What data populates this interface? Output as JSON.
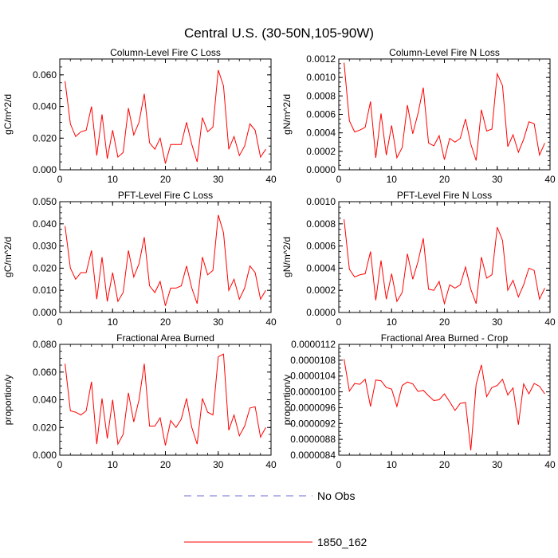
{
  "title": "Central U.S. (30-50N,105-90W)",
  "colors": {
    "series": "#ff0000",
    "obs": "#6b6bd6",
    "axis": "#000000"
  },
  "legend": {
    "items": [
      {
        "label": "No Obs",
        "style": "dashed"
      },
      {
        "label": "1850_162",
        "style": "solid"
      }
    ]
  },
  "chart_data": [
    {
      "type": "line",
      "title": "Column-Level Fire C Loss",
      "ylabel": "gC/m^2/d",
      "xlabel": "",
      "xlim": [
        0,
        40
      ],
      "ylim": [
        0,
        0.07
      ],
      "xticks": [
        0,
        10,
        20,
        30,
        40
      ],
      "xtick_labels": [
        "0",
        "10",
        "20",
        "30",
        "40"
      ],
      "yticks": [
        0,
        0.02,
        0.04,
        0.06
      ],
      "ytick_labels": [
        "0.000",
        "0.020",
        "0.040",
        "0.060"
      ],
      "series": [
        {
          "name": "1850_162",
          "x": [
            1,
            2,
            3,
            4,
            5,
            6,
            7,
            8,
            9,
            10,
            11,
            12,
            13,
            14,
            15,
            16,
            17,
            18,
            19,
            20,
            21,
            22,
            23,
            24,
            25,
            26,
            27,
            28,
            29,
            30,
            31,
            32,
            33,
            34,
            35,
            36,
            37,
            38,
            39
          ],
          "values": [
            0.056,
            0.029,
            0.021,
            0.024,
            0.025,
            0.04,
            0.009,
            0.035,
            0.007,
            0.025,
            0.008,
            0.011,
            0.039,
            0.022,
            0.03,
            0.048,
            0.017,
            0.013,
            0.02,
            0.004,
            0.016,
            0.016,
            0.016,
            0.03,
            0.016,
            0.005,
            0.033,
            0.024,
            0.027,
            0.063,
            0.053,
            0.013,
            0.021,
            0.009,
            0.015,
            0.029,
            0.025,
            0.008,
            0.013
          ]
        }
      ]
    },
    {
      "type": "line",
      "title": "Column-Level Fire N Loss",
      "ylabel": "gN/m^2/d",
      "xlabel": "",
      "xlim": [
        0,
        40
      ],
      "ylim": [
        0,
        0.0012
      ],
      "xticks": [
        0,
        10,
        20,
        30,
        40
      ],
      "xtick_labels": [
        "0",
        "10",
        "20",
        "30",
        "40"
      ],
      "yticks": [
        0,
        0.0002,
        0.0004,
        0.0006,
        0.0008,
        0.001,
        0.0012
      ],
      "ytick_labels": [
        "0.0000",
        "0.0002",
        "0.0004",
        "0.0006",
        "0.0008",
        "0.0010",
        "0.0012"
      ],
      "series": [
        {
          "name": "1850_162",
          "x": [
            1,
            2,
            3,
            4,
            5,
            6,
            7,
            8,
            9,
            10,
            11,
            12,
            13,
            14,
            15,
            16,
            17,
            18,
            19,
            20,
            21,
            22,
            23,
            24,
            25,
            26,
            27,
            28,
            29,
            30,
            31,
            32,
            33,
            34,
            35,
            36,
            37,
            38,
            39
          ],
          "values": [
            0.00116,
            0.00053,
            0.00041,
            0.00043,
            0.00046,
            0.00074,
            0.00013,
            0.00061,
            0.00016,
            0.00048,
            0.00013,
            0.00024,
            0.0007,
            0.00039,
            0.00061,
            0.00089,
            0.00029,
            0.00026,
            0.00037,
            0.00011,
            0.00034,
            0.0003,
            0.00034,
            0.00055,
            0.00028,
            0.0001,
            0.00065,
            0.00042,
            0.00044,
            0.00104,
            0.00091,
            0.00025,
            0.00038,
            0.00019,
            0.00033,
            0.00052,
            0.0005,
            0.00016,
            0.00029
          ]
        }
      ]
    },
    {
      "type": "line",
      "title": "PFT-Level Fire C Loss",
      "ylabel": "gC/m^2/d",
      "xlabel": "",
      "xlim": [
        0,
        40
      ],
      "ylim": [
        0,
        0.05
      ],
      "xticks": [
        0,
        10,
        20,
        30,
        40
      ],
      "xtick_labels": [
        "0",
        "10",
        "20",
        "30",
        "40"
      ],
      "yticks": [
        0,
        0.01,
        0.02,
        0.03,
        0.04,
        0.05
      ],
      "ytick_labels": [
        "0.000",
        "0.010",
        "0.020",
        "0.030",
        "0.040",
        "0.050"
      ],
      "series": [
        {
          "name": "1850_162",
          "x": [
            1,
            2,
            3,
            4,
            5,
            6,
            7,
            8,
            9,
            10,
            11,
            12,
            13,
            14,
            15,
            16,
            17,
            18,
            19,
            20,
            21,
            22,
            23,
            24,
            25,
            26,
            27,
            28,
            29,
            30,
            31,
            32,
            33,
            34,
            35,
            36,
            37,
            38,
            39
          ],
          "values": [
            0.039,
            0.02,
            0.015,
            0.018,
            0.018,
            0.028,
            0.006,
            0.025,
            0.005,
            0.018,
            0.005,
            0.009,
            0.028,
            0.016,
            0.022,
            0.034,
            0.012,
            0.009,
            0.014,
            0.003,
            0.011,
            0.011,
            0.012,
            0.021,
            0.011,
            0.004,
            0.025,
            0.017,
            0.019,
            0.044,
            0.036,
            0.01,
            0.015,
            0.006,
            0.011,
            0.021,
            0.018,
            0.006,
            0.01
          ]
        }
      ]
    },
    {
      "type": "line",
      "title": "PFT-Level Fire N Loss",
      "ylabel": "gN/m^2/d",
      "xlabel": "",
      "xlim": [
        0,
        40
      ],
      "ylim": [
        0,
        0.001
      ],
      "xticks": [
        0,
        10,
        20,
        30,
        40
      ],
      "xtick_labels": [
        "0",
        "10",
        "20",
        "30",
        "40"
      ],
      "yticks": [
        0,
        0.0002,
        0.0004,
        0.0006,
        0.0008,
        0.001
      ],
      "ytick_labels": [
        "0.0000",
        "0.0002",
        "0.0004",
        "0.0006",
        "0.0008",
        "0.0010"
      ],
      "series": [
        {
          "name": "1850_162",
          "x": [
            1,
            2,
            3,
            4,
            5,
            6,
            7,
            8,
            9,
            10,
            11,
            12,
            13,
            14,
            15,
            16,
            17,
            18,
            19,
            20,
            21,
            22,
            23,
            24,
            25,
            26,
            27,
            28,
            29,
            30,
            31,
            32,
            33,
            34,
            35,
            36,
            37,
            38,
            39
          ],
          "values": [
            0.00084,
            0.00039,
            0.00032,
            0.00034,
            0.00035,
            0.00055,
            0.00011,
            0.00047,
            0.00012,
            0.00035,
            0.0001,
            0.00018,
            0.00053,
            0.0003,
            0.00046,
            0.00067,
            0.00021,
            0.0002,
            0.00028,
            8e-05,
            0.00025,
            0.00022,
            0.00025,
            0.00041,
            0.00021,
            8e-05,
            0.0005,
            0.00031,
            0.00034,
            0.00077,
            0.00065,
            0.0002,
            0.00029,
            0.00014,
            0.00025,
            0.0004,
            0.00038,
            0.00012,
            0.00022
          ]
        }
      ]
    },
    {
      "type": "line",
      "title": "Fractional Area Burned",
      "ylabel": "proportion/y",
      "xlabel": "",
      "xlim": [
        0,
        40
      ],
      "ylim": [
        0,
        0.08
      ],
      "xticks": [
        0,
        10,
        20,
        30,
        40
      ],
      "xtick_labels": [
        "0",
        "10",
        "20",
        "30",
        "40"
      ],
      "yticks": [
        0,
        0.02,
        0.04,
        0.06,
        0.08
      ],
      "ytick_labels": [
        "0.000",
        "0.020",
        "0.040",
        "0.060",
        "0.080"
      ],
      "series": [
        {
          "name": "1850_162",
          "x": [
            1,
            2,
            3,
            4,
            5,
            6,
            7,
            8,
            9,
            10,
            11,
            12,
            13,
            14,
            15,
            16,
            17,
            18,
            19,
            20,
            21,
            22,
            23,
            24,
            25,
            26,
            27,
            28,
            29,
            30,
            31,
            32,
            33,
            34,
            35,
            36,
            37,
            38,
            39
          ],
          "values": [
            0.066,
            0.032,
            0.031,
            0.029,
            0.032,
            0.053,
            0.008,
            0.041,
            0.012,
            0.04,
            0.008,
            0.015,
            0.045,
            0.024,
            0.04,
            0.066,
            0.021,
            0.021,
            0.027,
            0.007,
            0.025,
            0.02,
            0.026,
            0.041,
            0.02,
            0.008,
            0.041,
            0.031,
            0.029,
            0.071,
            0.073,
            0.018,
            0.029,
            0.014,
            0.021,
            0.034,
            0.035,
            0.013,
            0.02
          ]
        }
      ]
    },
    {
      "type": "line",
      "title": "Fractional Area Burned - Crop",
      "ylabel": "proportion/y",
      "xlabel": "",
      "xlim": [
        0,
        40
      ],
      "ylim": [
        8.4e-06,
        1.12e-05
      ],
      "xticks": [
        0,
        10,
        20,
        30,
        40
      ],
      "xtick_labels": [
        "0",
        "10",
        "20",
        "30",
        "40"
      ],
      "yticks": [
        8.4e-06,
        8.8e-06,
        9.2e-06,
        9.6e-06,
        1e-05,
        1.04e-05,
        1.08e-05,
        1.12e-05
      ],
      "ytick_labels": [
        "0.0000084",
        "0.0000088",
        "0.0000092",
        "0.0000096",
        "0.0000100",
        "0.0000104",
        "0.0000108",
        "0.0000112"
      ],
      "series": [
        {
          "name": "1850_162",
          "x": [
            1,
            2,
            3,
            4,
            5,
            6,
            7,
            8,
            9,
            10,
            11,
            12,
            13,
            14,
            15,
            16,
            17,
            18,
            19,
            20,
            21,
            22,
            23,
            24,
            25,
            26,
            27,
            28,
            29,
            30,
            31,
            32,
            33,
            34,
            35,
            36,
            37,
            38,
            39
          ],
          "values": [
            1.083e-05,
            1.002e-05,
            1.021e-05,
            1.019e-05,
            1.032e-05,
            9.63e-06,
            1.03e-05,
            1.028e-05,
            1.011e-05,
            1.007e-05,
            9.63e-06,
            1.016e-05,
            1.025e-05,
            1.02e-05,
            1.001e-05,
            1.004e-05,
            9.9e-06,
            9.78e-06,
            9.8e-06,
            9.95e-06,
            9.75e-06,
            9.53e-06,
            9.71e-06,
            9.73e-06,
            8.52e-06,
            1.019e-05,
            1.068e-05,
            9.88e-06,
            1.011e-05,
            1.016e-05,
            1.032e-05,
            9.92e-06,
            1.01e-05,
            9.17e-06,
            1.02e-05,
            9.95e-06,
            1.021e-05,
            1.014e-05,
            9.95e-06
          ]
        }
      ]
    }
  ]
}
